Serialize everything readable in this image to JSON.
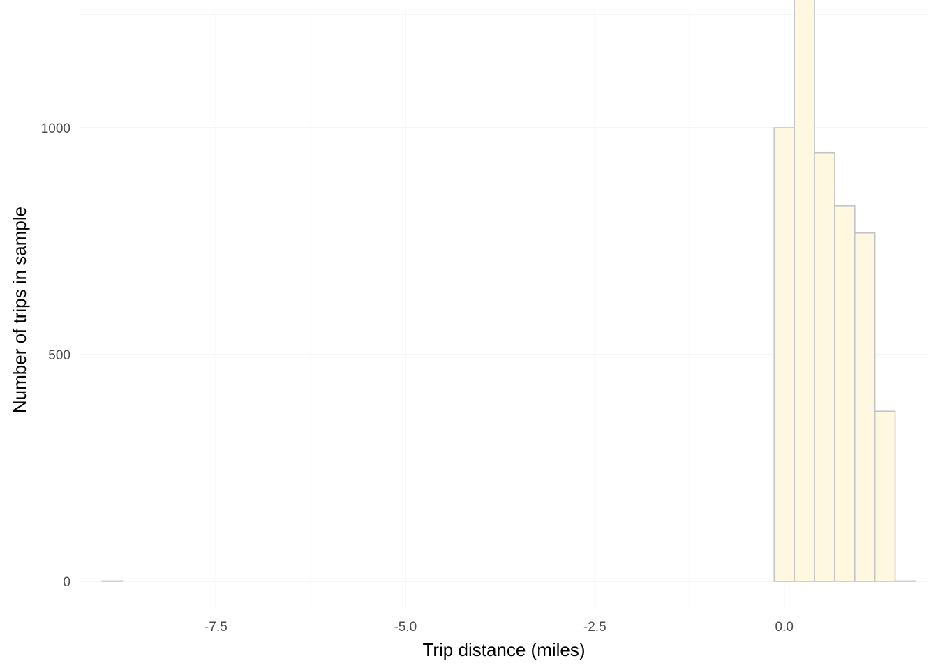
{
  "chart_data": {
    "type": "bar",
    "title": "",
    "xlabel": "Trip distance (miles)",
    "ylabel": "Number of trips in sample",
    "xlim": [
      -9.3,
      1.9
    ],
    "ylim": [
      -60,
      1260
    ],
    "x_ticks": [
      -7.5,
      -5.0,
      -2.5,
      0.0
    ],
    "x_tick_labels": [
      "-7.5",
      "-5.0",
      "-2.5",
      "0.0"
    ],
    "y_ticks": [
      0,
      500,
      1000
    ],
    "y_tick_labels": [
      "0",
      "500",
      "1000"
    ],
    "grid": true,
    "bin_width": 0.266,
    "bins": [
      {
        "x_start": -9.002,
        "x_end": -8.736,
        "count": 1
      },
      {
        "x_start": -8.736,
        "x_end": -8.47,
        "count": 0
      },
      {
        "x_start": -8.47,
        "x_end": -8.204,
        "count": 0
      },
      {
        "x_start": -8.204,
        "x_end": -7.938,
        "count": 0
      },
      {
        "x_start": -7.938,
        "x_end": -7.672,
        "count": 0
      },
      {
        "x_start": -7.672,
        "x_end": -7.406,
        "count": 0
      },
      {
        "x_start": -7.406,
        "x_end": -7.14,
        "count": 0
      },
      {
        "x_start": -7.14,
        "x_end": -6.874,
        "count": 0
      },
      {
        "x_start": -6.874,
        "x_end": -6.608,
        "count": 0
      },
      {
        "x_start": -6.608,
        "x_end": -6.342,
        "count": 0
      },
      {
        "x_start": -6.342,
        "x_end": -6.076,
        "count": 0
      },
      {
        "x_start": -6.076,
        "x_end": -5.81,
        "count": 0
      },
      {
        "x_start": -5.81,
        "x_end": -5.544,
        "count": 0
      },
      {
        "x_start": -5.544,
        "x_end": -5.278,
        "count": 0
      },
      {
        "x_start": -5.278,
        "x_end": -5.012,
        "count": 0
      },
      {
        "x_start": -5.012,
        "x_end": -4.746,
        "count": 0
      },
      {
        "x_start": -4.746,
        "x_end": -4.48,
        "count": 0
      },
      {
        "x_start": -4.48,
        "x_end": -4.214,
        "count": 0
      },
      {
        "x_start": -4.214,
        "x_end": -3.948,
        "count": 0
      },
      {
        "x_start": -3.948,
        "x_end": -3.682,
        "count": 0
      },
      {
        "x_start": -3.682,
        "x_end": -3.416,
        "count": 0
      },
      {
        "x_start": -3.416,
        "x_end": -3.15,
        "count": 0
      },
      {
        "x_start": -3.15,
        "x_end": -2.884,
        "count": 0
      },
      {
        "x_start": -2.884,
        "x_end": -2.618,
        "count": 0
      },
      {
        "x_start": -2.618,
        "x_end": -2.352,
        "count": 0
      },
      {
        "x_start": -2.352,
        "x_end": -2.086,
        "count": 0
      },
      {
        "x_start": -2.086,
        "x_end": -1.82,
        "count": 0
      },
      {
        "x_start": -1.82,
        "x_end": -1.554,
        "count": 0
      },
      {
        "x_start": -1.554,
        "x_end": -1.288,
        "count": 0
      },
      {
        "x_start": -1.288,
        "x_end": -1.022,
        "count": 0
      },
      {
        "x_start": -1.022,
        "x_end": -0.756,
        "count": 0
      },
      {
        "x_start": -0.756,
        "x_end": -0.49,
        "count": 0
      },
      {
        "x_start": -0.49,
        "x_end": -0.224,
        "count": 0
      },
      {
        "x_start": -0.224,
        "x_end": -0.133,
        "count": 0
      },
      {
        "x_start": -0.133,
        "x_end": 0.133,
        "count": 1000
      },
      {
        "x_start": 0.133,
        "x_end": 0.399,
        "count": 1295
      },
      {
        "x_start": 0.399,
        "x_end": 0.665,
        "count": 945
      },
      {
        "x_start": 0.665,
        "x_end": 0.931,
        "count": 828
      },
      {
        "x_start": 0.931,
        "x_end": 1.197,
        "count": 768
      },
      {
        "x_start": 1.197,
        "x_end": 1.463,
        "count": 375
      },
      {
        "x_start": 1.463,
        "x_end": 1.729,
        "count": 1
      }
    ],
    "colors": {
      "fill": "#fff8e0",
      "outline": "#c4c4c4",
      "background": "#ffffff"
    }
  }
}
